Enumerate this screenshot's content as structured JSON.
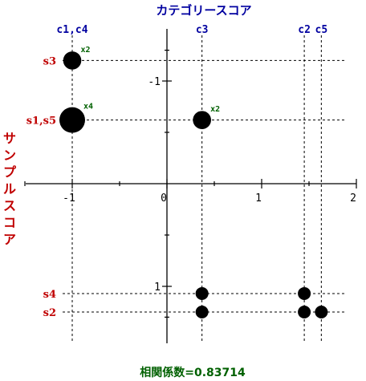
{
  "chart_data": {
    "type": "scatter",
    "x_title": "カテゴリースコア",
    "y_title": "サンプルスコア",
    "footer_label": "相関係数=0.83714",
    "x_ticks": [
      {
        "value": -1,
        "label": "-1"
      },
      {
        "value": 0,
        "label": "0"
      },
      {
        "value": 1,
        "label": "1"
      },
      {
        "value": 2,
        "label": "2"
      }
    ],
    "y_ticks": [
      {
        "value": -1,
        "label": "-1"
      },
      {
        "value": 1,
        "label": "1"
      }
    ],
    "xlim": [
      -1.45,
      2.0
    ],
    "ylim": [
      -1.4,
      1.35
    ],
    "columns": [
      {
        "label": "c1,c4",
        "x": -1.0
      },
      {
        "label": "c3",
        "x": 0.37
      },
      {
        "label": "c2",
        "x": 1.45
      },
      {
        "label": "c5",
        "x": 1.63
      }
    ],
    "rows": [
      {
        "label": "s3",
        "y": -1.2
      },
      {
        "label": "s1,s5",
        "y": -0.62
      },
      {
        "label": "s4",
        "y": 1.07
      },
      {
        "label": "s2",
        "y": 1.25
      }
    ],
    "points": [
      {
        "x": -1.0,
        "y": -1.2,
        "count": 2,
        "label": "x2"
      },
      {
        "x": -1.0,
        "y": -0.62,
        "count": 4,
        "label": "x4"
      },
      {
        "x": 0.37,
        "y": -0.62,
        "count": 2,
        "label": "x2"
      },
      {
        "x": 0.37,
        "y": 1.07,
        "count": 1,
        "label": ""
      },
      {
        "x": 1.45,
        "y": 1.07,
        "count": 1,
        "label": ""
      },
      {
        "x": 0.37,
        "y": 1.25,
        "count": 1,
        "label": ""
      },
      {
        "x": 1.45,
        "y": 1.25,
        "count": 1,
        "label": ""
      },
      {
        "x": 1.63,
        "y": 1.25,
        "count": 1,
        "label": ""
      }
    ]
  }
}
